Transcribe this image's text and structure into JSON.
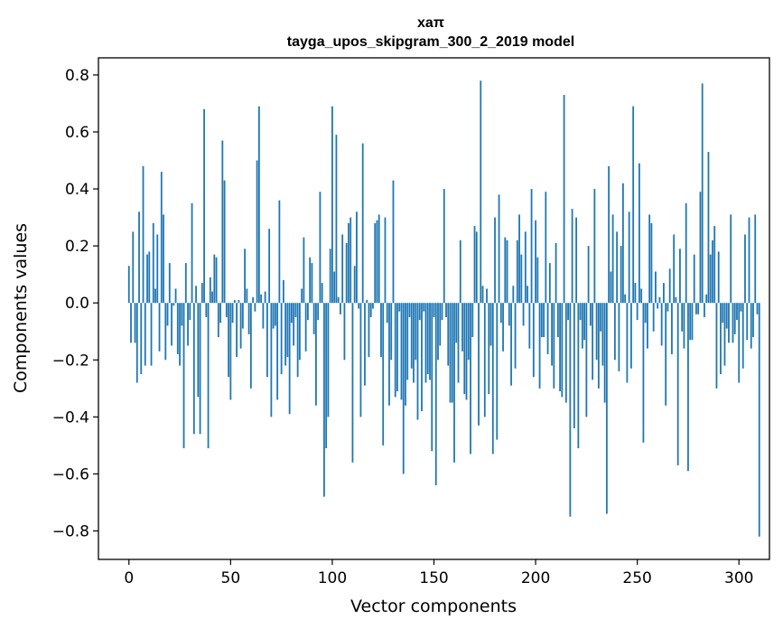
{
  "chart_data": {
    "type": "bar",
    "title": "хаπ",
    "subtitle": "tayga_upos_skipgram_300_2_2019 model",
    "xlabel": "Vector components",
    "ylabel": "Components values",
    "xlim": [
      -15,
      315
    ],
    "ylim": [
      -0.9,
      0.86
    ],
    "xticks": [
      0,
      50,
      100,
      150,
      200,
      250,
      300
    ],
    "yticks": [
      -0.8,
      -0.6,
      -0.4,
      -0.2,
      0.0,
      0.2,
      0.4,
      0.6,
      0.8
    ],
    "xtick_labels": [
      "0",
      "50",
      "100",
      "150",
      "200",
      "250",
      "300"
    ],
    "ytick_labels": [
      "−0.8",
      "−0.6",
      "−0.4",
      "−0.2",
      "0.0",
      "0.2",
      "0.4",
      "0.6",
      "0.8"
    ],
    "bar_color": "#1f77b4",
    "grid": false,
    "values": [
      0.13,
      -0.14,
      0.25,
      -0.14,
      -0.28,
      0.32,
      -0.25,
      0.48,
      -0.22,
      0.17,
      0.18,
      -0.22,
      0.28,
      0.05,
      0.24,
      -0.17,
      0.46,
      0.31,
      -0.2,
      -0.08,
      0.14,
      -0.15,
      -0.01,
      0.05,
      -0.18,
      -0.22,
      -0.08,
      -0.51,
      0.14,
      -0.15,
      -0.06,
      0.35,
      -0.46,
      0.06,
      -0.33,
      -0.46,
      0.07,
      0.68,
      -0.05,
      -0.51,
      0.09,
      0.04,
      0.17,
      0.16,
      -0.12,
      -0.07,
      0.57,
      0.43,
      -0.05,
      -0.26,
      -0.34,
      -0.07,
      0.01,
      -0.19,
      0.01,
      -0.16,
      -0.09,
      0.19,
      0.05,
      -0.11,
      -0.3,
      0.02,
      -0.03,
      0.5,
      0.69,
      0.03,
      -0.09,
      0.04,
      -0.26,
      0.26,
      -0.4,
      -0.09,
      -0.08,
      -0.34,
      0.36,
      -0.25,
      0.08,
      -0.22,
      -0.19,
      -0.39,
      -0.07,
      -0.15,
      -0.05,
      -0.26,
      -0.2,
      0.05,
      0.23,
      -0.17,
      -0.06,
      0.16,
      0.14,
      -0.11,
      -0.36,
      -0.06,
      0.39,
      0.07,
      -0.68,
      -0.51,
      -0.4,
      0.19,
      0.69,
      0.11,
      0.59,
      0.02,
      -0.04,
      0.24,
      -0.2,
      0.21,
      0.28,
      0.3,
      -0.56,
      0.13,
      0.32,
      -0.02,
      -0.4,
      0.56,
      -0.29,
      0.01,
      -0.19,
      -0.05,
      -0.02,
      0.28,
      0.29,
      0.31,
      -0.19,
      -0.5,
      0.3,
      -0.07,
      -0.36,
      -0.2,
      0.43,
      -0.33,
      -0.31,
      -0.03,
      -0.34,
      -0.6,
      -0.36,
      -0.27,
      -0.05,
      -0.23,
      -0.28,
      -0.2,
      -0.41,
      -0.06,
      -0.38,
      -0.03,
      -0.28,
      -0.25,
      -0.27,
      -0.52,
      -0.05,
      -0.64,
      -0.2,
      -0.15,
      -0.06,
      0.4,
      -0.05,
      -0.22,
      -0.35,
      -0.35,
      -0.56,
      -0.14,
      -0.28,
      0.22,
      -0.17,
      -0.32,
      -0.34,
      -0.2,
      -0.53,
      -0.12,
      0.27,
      0.25,
      -0.43,
      0.78,
      0.06,
      -0.4,
      0.05,
      -0.32,
      -0.15,
      -0.53,
      0.3,
      -0.48,
      0.38,
      -0.07,
      -0.17,
      0.23,
      0.22,
      -0.08,
      -0.29,
      0.06,
      -0.23,
      0.22,
      0.31,
      0.17,
      -0.08,
      0.25,
      0.06,
      -0.16,
      0.4,
      -0.26,
      0.29,
      0.16,
      -0.3,
      -0.12,
      -0.12,
      0.39,
      -0.18,
      0.14,
      -0.22,
      -0.3,
      0.21,
      -0.12,
      -0.31,
      -0.33,
      0.73,
      -0.35,
      -0.06,
      -0.75,
      0.33,
      -0.44,
      0.3,
      -0.51,
      -0.06,
      -0.16,
      -0.13,
      -0.4,
      0.2,
      -0.08,
      -0.27,
      0.4,
      -0.2,
      -0.3,
      -0.1,
      -0.22,
      -0.35,
      -0.74,
      0.48,
      0.11,
      0.31,
      -0.2,
      0.25,
      -0.24,
      0.2,
      0.42,
      0.03,
      -0.28,
      0.32,
      -0.23,
      0.69,
      0.07,
      -0.06,
      0.49,
      0.05,
      -0.49,
      -0.07,
      -0.16,
      0.31,
      0.28,
      -0.1,
      0.11,
      -0.02,
      0.02,
      -0.15,
      0.07,
      -0.36,
      -0.03,
      0.12,
      -0.18,
      0.24,
      0.02,
      -0.57,
      0.19,
      -0.1,
      -0.16,
      0.35,
      -0.59,
      -0.13,
      -0.13,
      0.17,
      -0.04,
      -0.04,
      0.39,
      0.77,
      -0.05,
      0.03,
      0.53,
      0.17,
      0.22,
      0.27,
      -0.3,
      0.18,
      -0.25,
      -0.07,
      -0.22,
      -0.09,
      -0.14,
      0.31,
      -0.14,
      -0.11,
      -0.06,
      -0.28,
      -0.03,
      -0.23,
      0.24,
      -0.13,
      0.3,
      -0.16,
      -0.12,
      0.31,
      -0.04,
      -0.82
    ]
  }
}
